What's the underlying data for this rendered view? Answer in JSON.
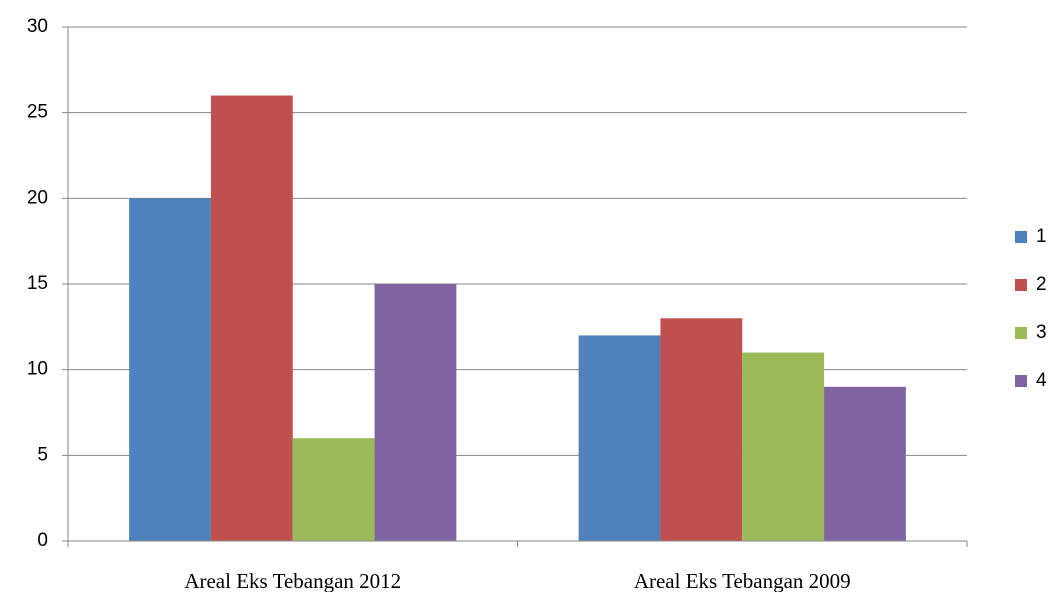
{
  "chart_data": {
    "type": "bar",
    "categories": [
      "Areal Eks Tebangan 2012",
      "Areal Eks Tebangan 2009"
    ],
    "series": [
      {
        "name": "1",
        "color": "#4f81bd",
        "values": [
          20,
          12
        ]
      },
      {
        "name": "2",
        "color": "#c0504d",
        "values": [
          26,
          13
        ]
      },
      {
        "name": "3",
        "color": "#9bbb59",
        "values": [
          6,
          11
        ]
      },
      {
        "name": "4",
        "color": "#8064a2",
        "values": [
          15,
          9
        ]
      }
    ],
    "ylim": [
      0,
      30
    ],
    "yticks": [
      0,
      5,
      10,
      15,
      20,
      25,
      30
    ],
    "grid": true,
    "legend": "right"
  }
}
